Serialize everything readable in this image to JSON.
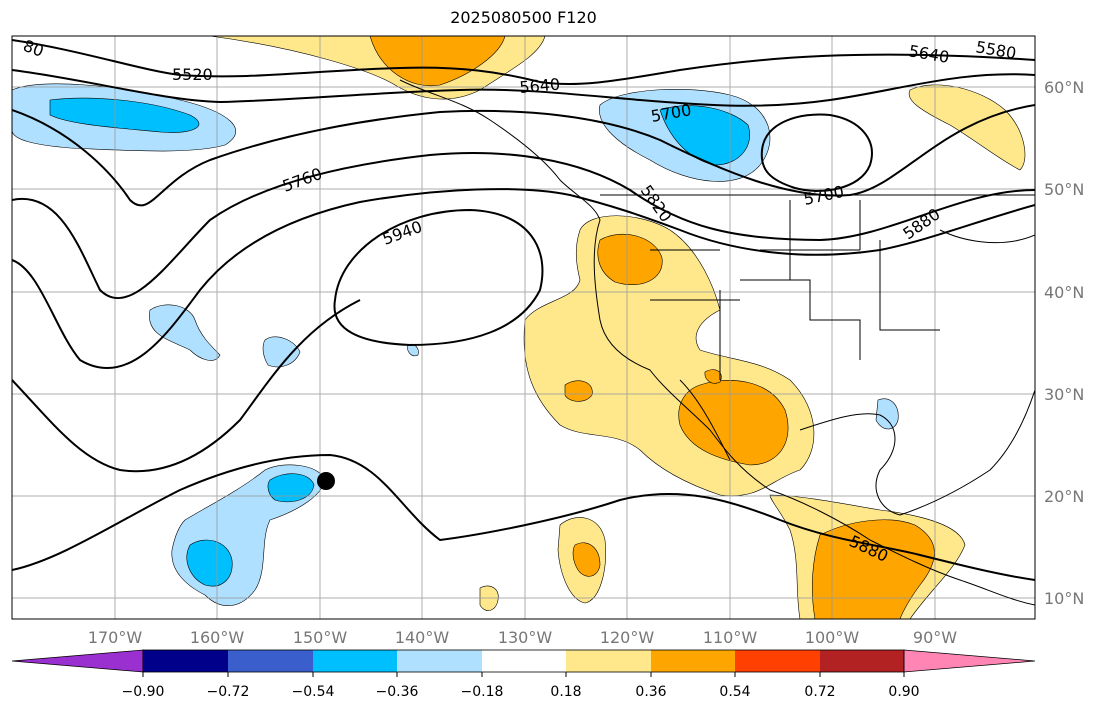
{
  "title": "2025080500 F120",
  "longitude_labels": [
    "170°W",
    "160°W",
    "150°W",
    "140°W",
    "130°W",
    "120°W",
    "110°W",
    "100°W",
    "90°W"
  ],
  "latitude_labels": [
    "60°N",
    "50°N",
    "40°N",
    "30°N",
    "20°N",
    "10°N"
  ],
  "contour_labels": [
    "5520",
    "5640",
    "5700",
    "5700",
    "5760",
    "5820",
    "5880",
    "5880",
    "5940",
    "5640",
    "5580",
    "80"
  ],
  "colorbar": {
    "ticks": [
      "−0.90",
      "−0.72",
      "−0.54",
      "−0.36",
      "−0.18",
      "0.18",
      "0.36",
      "0.54",
      "0.72",
      "0.90"
    ],
    "colors": [
      "#9b30d0",
      "#00008b",
      "#3a5fcd",
      "#00bfff",
      "#b0e0ff",
      "#ffffff",
      "#ffe88c",
      "#ffa500",
      "#ff4000",
      "#b22222",
      "#ff86b4"
    ]
  },
  "marker": "storm-position-dot",
  "colors": {
    "grid": "#999999",
    "positive_light": "#ffe88c",
    "positive_mid": "#ffa500",
    "negative_light": "#b0e0ff",
    "negative_mid": "#00bfff"
  }
}
